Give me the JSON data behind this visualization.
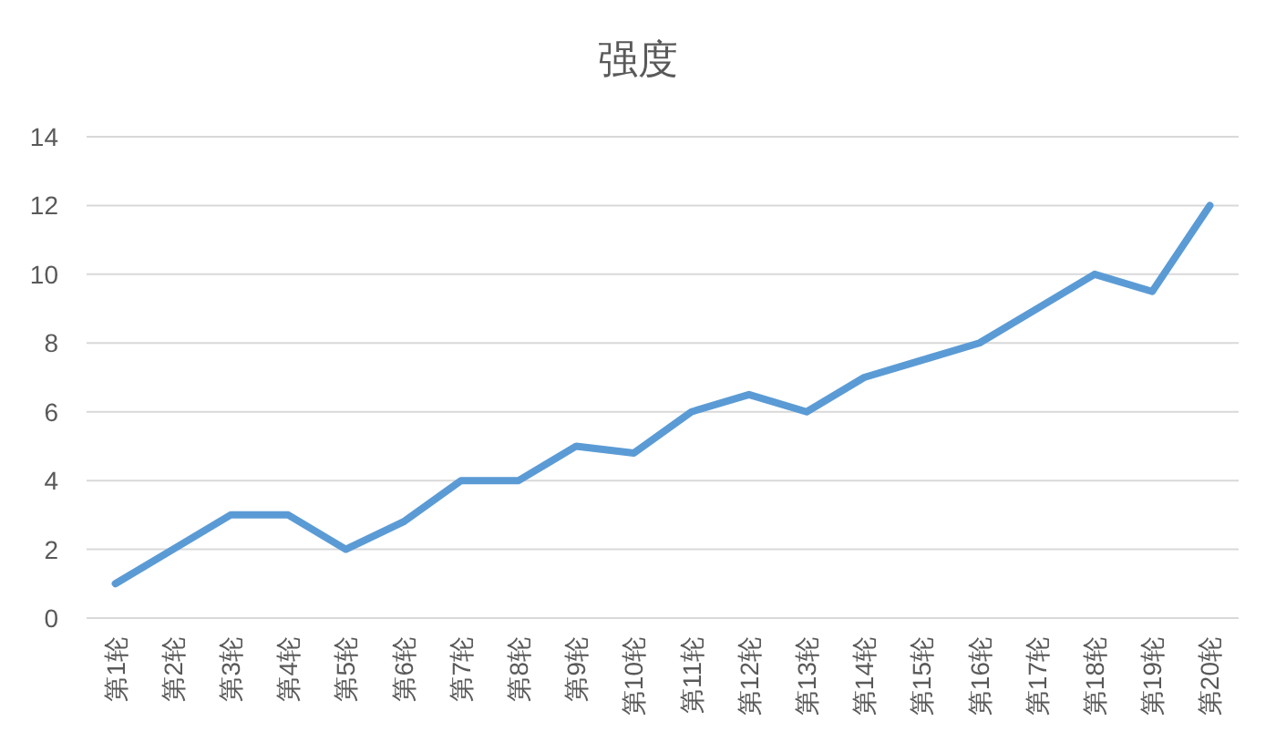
{
  "chart_data": {
    "type": "line",
    "title": "强度",
    "categories": [
      "第1轮",
      "第2轮",
      "第3轮",
      "第4轮",
      "第5轮",
      "第6轮",
      "第7轮",
      "第8轮",
      "第9轮",
      "第10轮",
      "第11轮",
      "第12轮",
      "第13轮",
      "第14轮",
      "第15轮",
      "第16轮",
      "第17轮",
      "第18轮",
      "第19轮",
      "第20轮"
    ],
    "series": [
      {
        "color": "#5b9bd5",
        "values": [
          1,
          2,
          3,
          3,
          2,
          2.8,
          4,
          4,
          5,
          4.8,
          6,
          6.5,
          6,
          7,
          7.5,
          8,
          9,
          10,
          9.5,
          12
        ]
      }
    ],
    "ylim": [
      0,
      14
    ],
    "yticks": [
      0,
      2,
      4,
      6,
      8,
      10,
      12,
      14
    ],
    "grid": "y",
    "marker": "none",
    "line_style": "solid"
  }
}
